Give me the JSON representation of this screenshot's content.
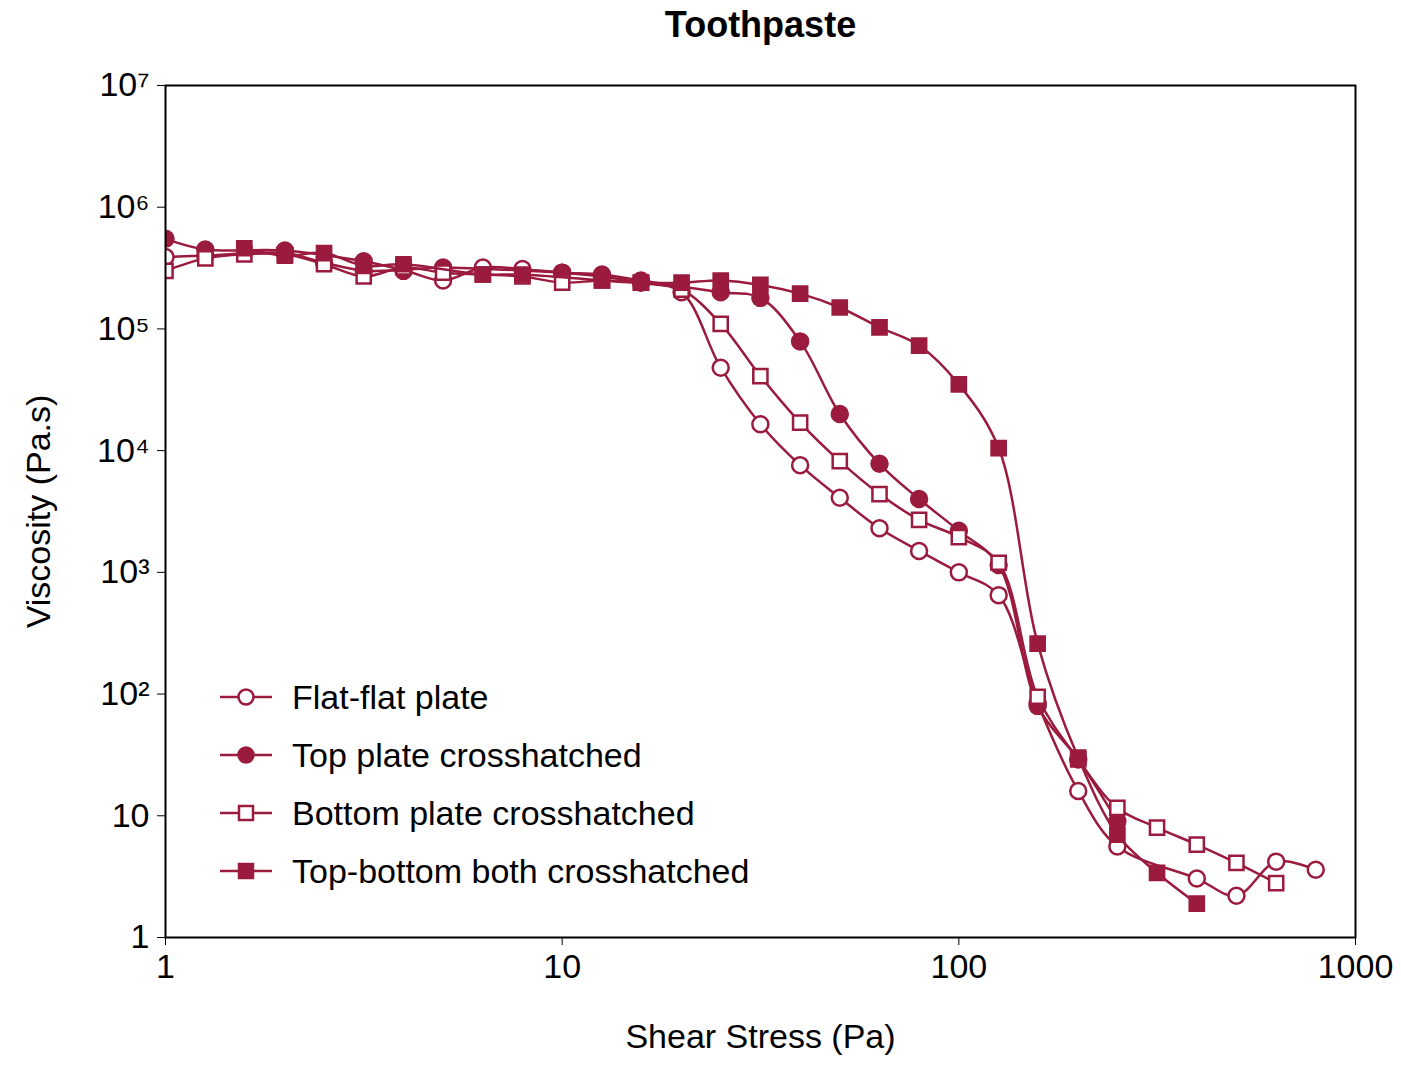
{
  "chart_data": {
    "type": "line",
    "title": "Toothpaste",
    "x_label": "Shear Stress (Pa)",
    "y_label": "Viscosity (Pa.s)",
    "log": true,
    "grid": false,
    "legend": "lower left",
    "xlim": [
      1,
      1000
    ],
    "ylim": [
      1,
      10000000
    ],
    "xticks": [
      1,
      10,
      100,
      1000
    ],
    "yticks": [
      1,
      10,
      {
        "value": 100,
        "label": "10²"
      },
      {
        "value": 1000,
        "label": "10³"
      },
      {
        "value": 10000,
        "label": "10⁴"
      },
      {
        "value": 100000,
        "label": "10⁵"
      },
      {
        "value": 1000000,
        "label": "10⁶"
      },
      {
        "value": 10000000,
        "label": "10⁷"
      }
    ],
    "series": [
      {
        "name": "Flat-flat plate",
        "color": "#9b1b3e",
        "marker": "circle-open",
        "x": [
          1,
          1.26,
          2,
          2.51,
          3.16,
          3.98,
          5.01,
          6.31,
          7.94,
          10,
          12.6,
          15.8,
          20,
          25.1,
          31.6,
          39.8,
          50.1,
          63.1,
          79.4,
          100,
          126,
          158,
          200,
          251,
          398,
          501,
          631,
          794
        ],
        "values": [
          390000,
          400000,
          420000,
          350000,
          300000,
          300000,
          250000,
          320000,
          310000,
          290000,
          270000,
          240000,
          200000,
          48000,
          16500,
          7600,
          4100,
          2300,
          1500,
          1000,
          650,
          84,
          16,
          5.6,
          3.05,
          2.2,
          4.2,
          3.6
        ]
      },
      {
        "name": "Top plate crosshatched",
        "color": "#9b1b3e",
        "marker": "circle",
        "x": [
          1,
          1.26,
          2,
          3.16,
          3.98,
          5.01,
          10,
          12.6,
          15.8,
          25.1,
          31.6,
          39.8,
          50.1,
          63.1,
          79.4,
          100,
          126,
          158,
          200,
          251
        ],
        "values": [
          550000,
          450000,
          440000,
          360000,
          310000,
          320000,
          290000,
          280000,
          250000,
          200000,
          180000,
          79000,
          20000,
          7800,
          4000,
          2200,
          1150,
          80,
          29,
          9
        ]
      },
      {
        "name": "Bottom plate crosshatched",
        "color": "#9b1b3e",
        "marker": "square-open",
        "x": [
          1,
          1.26,
          1.58,
          2,
          2.51,
          3.16,
          3.98,
          5.01,
          6.31,
          7.94,
          10,
          12.6,
          15.8,
          20,
          25.1,
          31.6,
          39.8,
          50.1,
          63.1,
          79.4,
          100,
          126,
          158,
          200,
          251,
          316,
          398,
          501,
          631
        ],
        "values": [
          300000,
          380000,
          410000,
          410000,
          340000,
          270000,
          320000,
          290000,
          280000,
          270000,
          240000,
          250000,
          240000,
          210000,
          110000,
          41000,
          17000,
          8200,
          4400,
          2700,
          1950,
          1200,
          95,
          29,
          11.6,
          8,
          5.8,
          4.1,
          2.8
        ]
      },
      {
        "name": "Top-bottom both crosshatched",
        "color": "#9b1b3e",
        "marker": "square",
        "x": [
          1.58,
          2,
          2.51,
          3.16,
          3.98,
          6.31,
          7.94,
          12.6,
          15.8,
          20,
          25.1,
          31.6,
          39.8,
          50.1,
          63.1,
          79.4,
          100,
          126,
          158,
          200,
          251,
          316,
          398
        ],
        "values": [
          460000,
          400000,
          420000,
          330000,
          340000,
          280000,
          280000,
          250000,
          240000,
          240000,
          250000,
          230000,
          195000,
          150000,
          103000,
          73000,
          35000,
          10500,
          260,
          30,
          7,
          3.4,
          1.9
        ]
      }
    ]
  }
}
